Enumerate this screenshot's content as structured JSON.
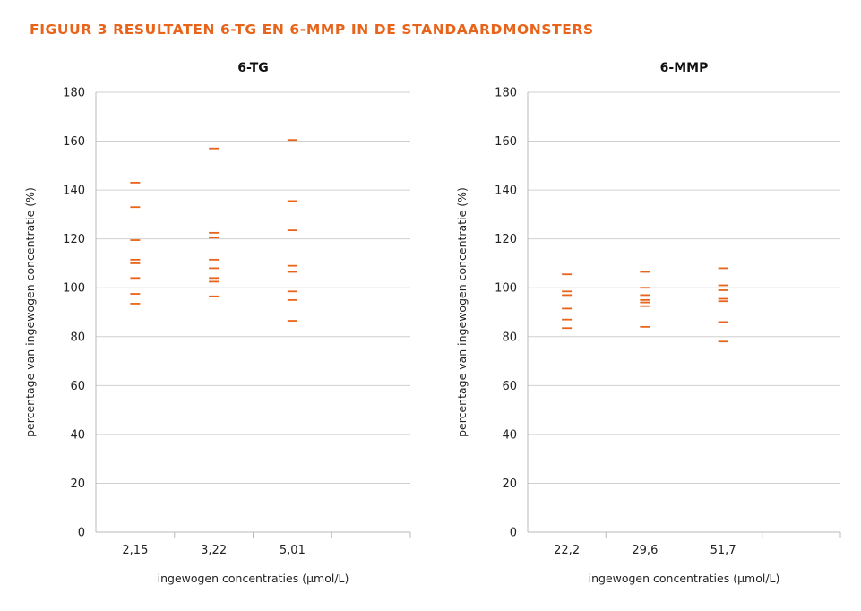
{
  "figure_title": "FIGUUR 3  RESULTATEN 6-TG EN 6-MMP IN DE STANDAARDMONSTERS",
  "colors": {
    "title": "#e8641b",
    "marker": "#e8641b",
    "grid": "#d0d0d0",
    "axis": "#b8b8b8"
  },
  "chart_data": [
    {
      "type": "scatter",
      "marker": "dash",
      "title": "6-TG",
      "xlabel": "ingewogen concentraties (µmol/L)",
      "ylabel": "percentage van ingewogen concentratie (%)",
      "ylim": [
        0,
        180
      ],
      "yticks": [
        0,
        20,
        40,
        60,
        80,
        100,
        120,
        140,
        160,
        180
      ],
      "grid": true,
      "categories": [
        "2,15",
        "3,22",
        "5,01"
      ],
      "values": [
        [
          143,
          133,
          119.5,
          111.5,
          110,
          104,
          97.5,
          93.5
        ],
        [
          157,
          122.5,
          120.5,
          111.5,
          108,
          104,
          102.5,
          96.5
        ],
        [
          160.5,
          135.5,
          123.5,
          109,
          106.5,
          98.5,
          95,
          86.5
        ]
      ]
    },
    {
      "type": "scatter",
      "marker": "dash",
      "title": "6-MMP",
      "xlabel": "ingewogen concentraties (µmol/L)",
      "ylabel": "percentage van ingewogen concentratie (%)",
      "ylim": [
        0,
        180
      ],
      "yticks": [
        0,
        20,
        40,
        60,
        80,
        100,
        120,
        140,
        160,
        180
      ],
      "grid": true,
      "categories": [
        "22,2",
        "29,6",
        "51,7"
      ],
      "values": [
        [
          105.5,
          98.5,
          97,
          91.5,
          87,
          83.5
        ],
        [
          106.5,
          100,
          97,
          95,
          94,
          92.5,
          84
        ],
        [
          108,
          101,
          99,
          95.5,
          94.5,
          86,
          78
        ]
      ]
    }
  ]
}
